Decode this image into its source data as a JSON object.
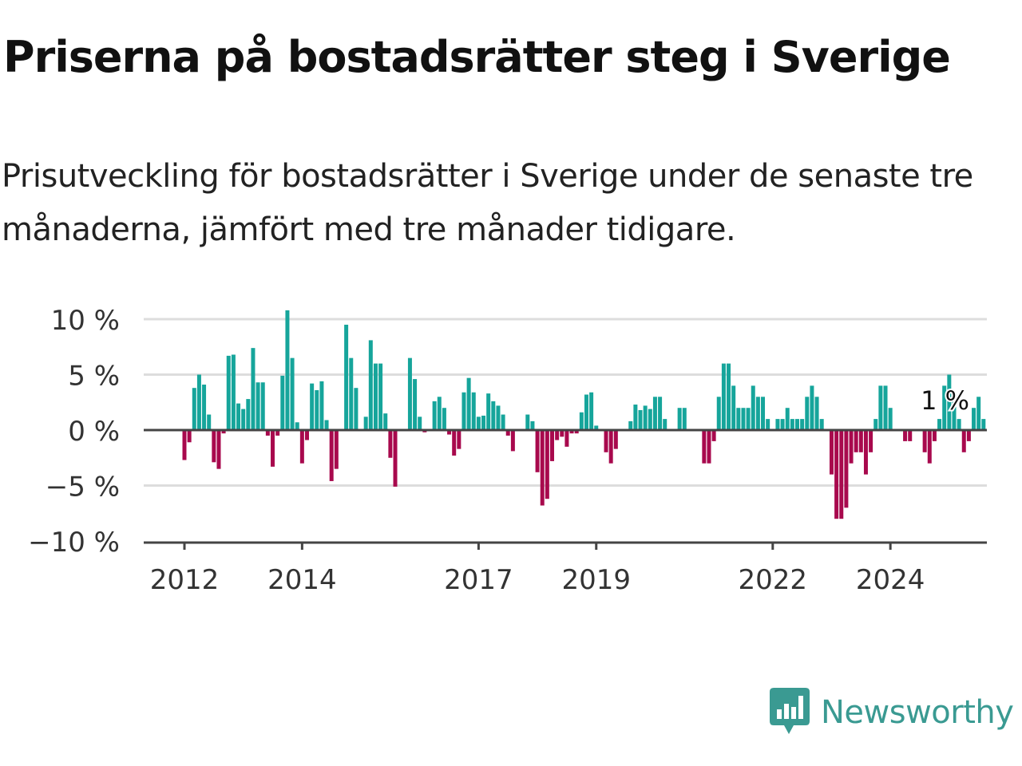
{
  "title": "Priserna på bostadsrätter steg i Sverige",
  "subtitle": "Prisutveckling för bostadsrätter i Sverige under de senaste tre månaderna, jämfört med tre månader tidigare.",
  "brand": {
    "name": "Newsworthy",
    "icon": "newsworthy-logo-icon",
    "color": "#3a9a92"
  },
  "colors": {
    "positive": "#16a59b",
    "negative": "#a8094d",
    "grid": "#dddddd",
    "axis": "#444444"
  },
  "chart_data": {
    "type": "bar",
    "title": "Priserna på bostadsrätter steg i Sverige",
    "subtitle": "Prisutveckling för bostadsrätter i Sverige under de senaste tre månaderna, jämfört med tre månader tidigare.",
    "xlabel": "",
    "ylabel": "",
    "ylim": [
      -10.5,
      10.8
    ],
    "yticks": [
      {
        "value": 10,
        "label": "10 %"
      },
      {
        "value": 5,
        "label": "5 %"
      },
      {
        "value": 0,
        "label": "0 %"
      },
      {
        "value": -5,
        "label": "−5 %"
      },
      {
        "value": -10,
        "label": "−10 %"
      }
    ],
    "xticks": [
      {
        "date": "2012-01",
        "label": "2012"
      },
      {
        "date": "2014-01",
        "label": "2014"
      },
      {
        "date": "2017-01",
        "label": "2017"
      },
      {
        "date": "2019-01",
        "label": "2019"
      },
      {
        "date": "2022-01",
        "label": "2022"
      },
      {
        "date": "2024-01",
        "label": "2024"
      }
    ],
    "start": "2012-01",
    "values": [
      -2.7,
      -1.1,
      3.8,
      5.0,
      4.1,
      1.4,
      -2.9,
      -3.5,
      -0.3,
      6.7,
      6.8,
      2.4,
      1.9,
      2.8,
      7.4,
      4.3,
      4.3,
      -0.5,
      -3.3,
      -0.5,
      4.9,
      10.8,
      6.5,
      0.7,
      -3.0,
      -0.9,
      4.2,
      3.6,
      4.4,
      0.9,
      -4.6,
      -3.5,
      0.0,
      9.5,
      6.5,
      3.8,
      -0.1,
      1.2,
      8.1,
      6.0,
      6.0,
      1.5,
      -2.5,
      -5.1,
      0.0,
      0.0,
      6.5,
      4.6,
      1.2,
      -0.2,
      0.0,
      2.6,
      3.0,
      2.0,
      -0.4,
      -2.3,
      -1.7,
      3.4,
      4.7,
      3.4,
      1.2,
      1.3,
      3.3,
      2.6,
      2.2,
      1.4,
      -0.5,
      -1.9,
      0.0,
      0.0,
      1.4,
      0.8,
      -3.8,
      -6.8,
      -6.2,
      -2.8,
      -0.9,
      -0.6,
      -1.5,
      -0.3,
      -0.3,
      1.6,
      3.2,
      3.4,
      0.4,
      0.0,
      -2.0,
      -3.0,
      -1.7,
      0.0,
      0.0,
      0.8,
      2.3,
      1.8,
      2.2,
      1.9,
      3.0,
      3.0,
      1.0,
      0.0,
      0.0,
      2.0,
      2.0,
      0.0,
      0.0,
      0.0,
      -3.0,
      -3.0,
      -1.0,
      3.0,
      6.0,
      6.0,
      4.0,
      2.0,
      2.0,
      2.0,
      4.0,
      3.0,
      3.0,
      1.0,
      0.0,
      1.0,
      1.0,
      2.0,
      1.0,
      1.0,
      1.0,
      3.0,
      4.0,
      3.0,
      1.0,
      0.0,
      -4.0,
      -8.0,
      -8.0,
      -7.0,
      -3.0,
      -2.0,
      -2.0,
      -4.0,
      -2.0,
      1.0,
      4.0,
      4.0,
      2.0,
      0.0,
      0.0,
      -1.0,
      -1.0,
      0.0,
      0.0,
      -2.0,
      -3.0,
      -1.0,
      1.0,
      4.0,
      5.0,
      3.0,
      1.0,
      -2.0,
      -1.0,
      2.0,
      3.0,
      1.0
    ],
    "last_label": "1 %",
    "colors": {
      "positive": "#16a59b",
      "negative": "#a8094d"
    },
    "grid": true,
    "legend": "none"
  }
}
